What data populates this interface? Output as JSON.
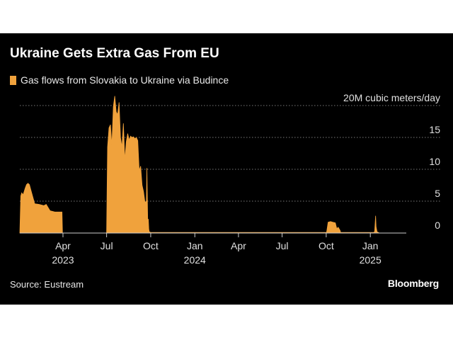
{
  "title": "Ukraine Gets Extra Gas From EU",
  "legend_label": "Gas flows from Slovakia to Ukraine via Budince",
  "source": "Source: Eustream",
  "brand": "Bloomberg",
  "colors": {
    "background": "#000000",
    "series": "#f0a23c",
    "grid": "#777777",
    "text": "#ffffff"
  },
  "chart_data": {
    "type": "area",
    "unit_label": "20M cubic meters/day",
    "series": [
      {
        "name": "Gas flows from Slovakia to Ukraine via Budince",
        "x": [
          "2023-01-01",
          "2023-01-03",
          "2023-01-05",
          "2023-01-08",
          "2023-01-12",
          "2023-01-15",
          "2023-01-18",
          "2023-01-21",
          "2023-01-25",
          "2023-02-01",
          "2023-02-10",
          "2023-02-20",
          "2023-02-25",
          "2023-03-05",
          "2023-03-15",
          "2023-03-30",
          "2023-03-31",
          "2023-06-30",
          "2023-07-01",
          "2023-07-03",
          "2023-07-06",
          "2023-07-09",
          "2023-07-12",
          "2023-07-15",
          "2023-07-18",
          "2023-07-21",
          "2023-07-24",
          "2023-07-27",
          "2023-07-30",
          "2023-08-02",
          "2023-08-05",
          "2023-08-08",
          "2023-08-11",
          "2023-08-14",
          "2023-08-17",
          "2023-08-20",
          "2023-08-23",
          "2023-08-26",
          "2023-08-29",
          "2023-09-01",
          "2023-09-04",
          "2023-09-07",
          "2023-09-10",
          "2023-09-13",
          "2023-09-16",
          "2023-09-19",
          "2023-09-22",
          "2023-09-23",
          "2023-09-25",
          "2023-09-26",
          "2023-09-27",
          "2023-09-28",
          "2023-10-01",
          "2024-04-01",
          "2024-10-01",
          "2024-10-02",
          "2024-10-05",
          "2024-10-10",
          "2024-10-15",
          "2024-10-20",
          "2024-10-23",
          "2024-10-26",
          "2024-10-30",
          "2024-10-31",
          "2025-01-01",
          "2025-01-08",
          "2025-01-10",
          "2025-01-12",
          "2025-01-13",
          "2025-01-15",
          "2025-01-20"
        ],
        "values": [
          0,
          5.8,
          6.3,
          6.0,
          7.0,
          7.6,
          7.8,
          7.6,
          6.5,
          4.6,
          4.5,
          4.3,
          4.5,
          3.5,
          3.3,
          3.3,
          0,
          0,
          0.1,
          13.5,
          16.5,
          17.0,
          13.8,
          19.8,
          21.5,
          19.0,
          18.6,
          20.5,
          15.0,
          13.5,
          17.2,
          11.5,
          14.3,
          15.6,
          14.6,
          15.2,
          15.0,
          15.1,
          14.8,
          15.0,
          14.5,
          9.8,
          10.5,
          7.5,
          6.5,
          4.8,
          5.0,
          10.2,
          0.9,
          2.2,
          0.6,
          0.2,
          0.1,
          0.1,
          0.1,
          0.2,
          1.7,
          1.8,
          1.7,
          1.6,
          0.7,
          0.9,
          0.4,
          0.1,
          0.1,
          0.1,
          0.2,
          2.7,
          1.0,
          0.2,
          0
        ]
      }
    ],
    "ylim": [
      0,
      20
    ],
    "yticks": [
      0,
      5,
      10,
      15,
      20
    ],
    "ytick_labels": [
      "0",
      "5",
      "10",
      "15",
      "20M cubic meters/day"
    ],
    "xlim": [
      "2023-01-01",
      "2025-03-17"
    ],
    "xticks": [
      {
        "date": "2023-04-01",
        "label": "Apr",
        "year": "2023"
      },
      {
        "date": "2023-07-01",
        "label": "Jul",
        "year": ""
      },
      {
        "date": "2023-10-01",
        "label": "Oct",
        "year": ""
      },
      {
        "date": "2024-01-01",
        "label": "Jan",
        "year": "2024"
      },
      {
        "date": "2024-04-01",
        "label": "Apr",
        "year": ""
      },
      {
        "date": "2024-07-01",
        "label": "Jul",
        "year": ""
      },
      {
        "date": "2024-10-01",
        "label": "Oct",
        "year": ""
      },
      {
        "date": "2025-01-01",
        "label": "Jan",
        "year": "2025"
      }
    ],
    "grid": true,
    "legend_position": "top-left"
  }
}
